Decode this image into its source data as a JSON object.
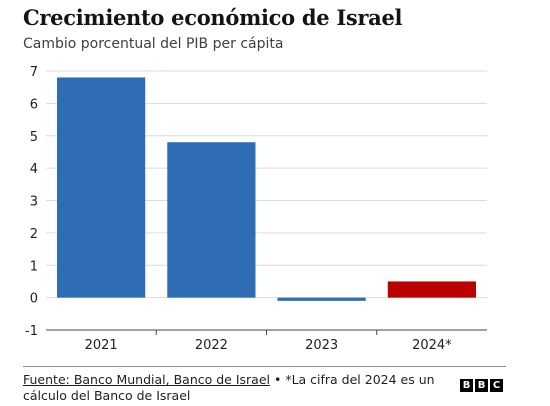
{
  "header": {
    "title": "Crecimiento económico de Israel",
    "subtitle": "Cambio porcentual del PIB per cápita"
  },
  "chart_data": {
    "type": "bar",
    "categories": [
      "2021",
      "2022",
      "2023",
      "2024*"
    ],
    "values": [
      6.8,
      4.8,
      -0.1,
      0.5
    ],
    "colors": [
      "#2e6db4",
      "#2e6db4",
      "#2e6db4",
      "#bb0000"
    ],
    "ylim": [
      -1,
      7
    ],
    "yticks": [
      -1,
      0,
      1,
      2,
      3,
      4,
      5,
      6,
      7
    ],
    "grid": true,
    "title": "Crecimiento económico de Israel",
    "subtitle": "Cambio porcentual del PIB per cápita",
    "xlabel": "",
    "ylabel": ""
  },
  "footer": {
    "source": "Fuente: Banco Mundial, Banco de Israel",
    "note": " • *La cifra del 2024 es un cálculo del Banco de Israel",
    "logo_letters": [
      "B",
      "B",
      "C"
    ]
  }
}
